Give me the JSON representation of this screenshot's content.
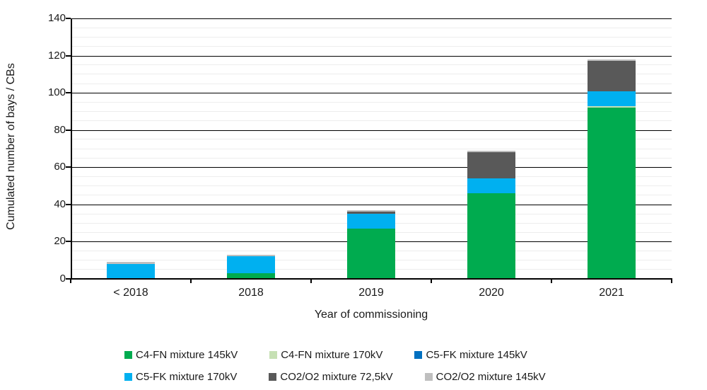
{
  "chart_data": {
    "type": "bar",
    "stacked": true,
    "title": "",
    "xlabel": "Year of commissioning",
    "ylabel": "Cumulated number of bays / CBs",
    "categories": [
      "< 2018",
      "2018",
      "2019",
      "2020",
      "2021"
    ],
    "series": [
      {
        "name": "C4-FN mixture 145kV",
        "color": "#00AB4F",
        "values": [
          0,
          3,
          27,
          46,
          92
        ]
      },
      {
        "name": "C4-FN mixture 170kV",
        "color": "#C6E0B4",
        "values": [
          0,
          0,
          0,
          0,
          1
        ]
      },
      {
        "name": "C5-FK mixture 145kV",
        "color": "#0070C0",
        "values": [
          0,
          0,
          0,
          0,
          0
        ]
      },
      {
        "name": "C5-FK mixture 170kV",
        "color": "#00B0F0",
        "values": [
          8,
          9,
          8,
          8,
          8
        ]
      },
      {
        "name": "CO2/O2 mixture 72,5kV",
        "color": "#595959",
        "values": [
          0,
          0,
          1,
          14,
          16
        ]
      },
      {
        "name": "CO2/O2 mixture 145kV",
        "color": "#BFBFBF",
        "values": [
          1,
          1,
          1,
          1,
          1
        ]
      }
    ],
    "bar_totals": [
      9,
      13,
      37,
      69,
      118
    ],
    "ylim": [
      0,
      140
    ],
    "ytick_step": 20,
    "yminor_step": 5,
    "ytick_labels": [
      "0",
      "20",
      "40",
      "60",
      "80",
      "100",
      "120",
      "140"
    ],
    "grid": true,
    "legend_position": "bottom",
    "legend_rows": [
      [
        0,
        1,
        2
      ],
      [
        3,
        4,
        5
      ]
    ]
  },
  "style_colors": {
    "major_gridline": "#000000",
    "minor_gridline": "#ededed",
    "axis_line": "#000000",
    "text": "#1a1a1a",
    "background": "#ffffff"
  }
}
